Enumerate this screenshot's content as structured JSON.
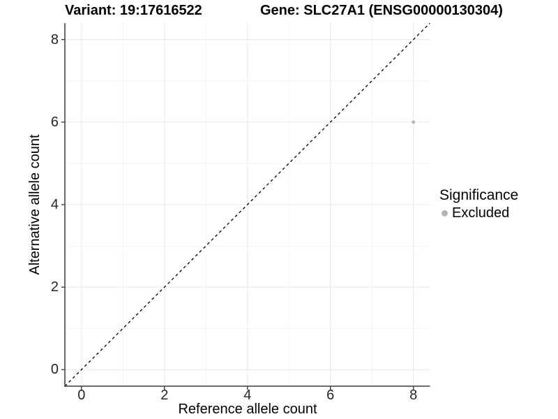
{
  "chart_data": {
    "type": "scatter",
    "title_variant": "Variant: 19:17616522",
    "title_gene": "Gene: SLC27A1 (ENSG00000130304)",
    "xlabel": "Reference allele count",
    "ylabel": "Alternative allele count",
    "xlim": [
      -0.4,
      8.4
    ],
    "ylim": [
      -0.4,
      8.4
    ],
    "x_ticks": [
      0,
      2,
      4,
      6,
      8
    ],
    "y_ticks": [
      0,
      2,
      4,
      6,
      8
    ],
    "x_minor_ticks": [
      1,
      3,
      5,
      7
    ],
    "y_minor_ticks": [
      1,
      3,
      5,
      7
    ],
    "grid": "on",
    "reference_line": {
      "type": "identity",
      "style": "dashed",
      "color": "#000000"
    },
    "series": [
      {
        "name": "Excluded",
        "color": "#b5b5b5",
        "points": [
          {
            "x": 8,
            "y": 6
          }
        ]
      }
    ],
    "legend": {
      "title": "Significance",
      "position": "right",
      "items": [
        {
          "label": "Excluded",
          "color": "#b5b5b5"
        }
      ]
    },
    "style": {
      "panel_background": "#ffffff",
      "grid_major_color": "#e8e8e8",
      "grid_minor_color": "#f3f3f3",
      "axis_line_color": "#3a3a3a",
      "tick_color": "#3a3a3a"
    }
  }
}
